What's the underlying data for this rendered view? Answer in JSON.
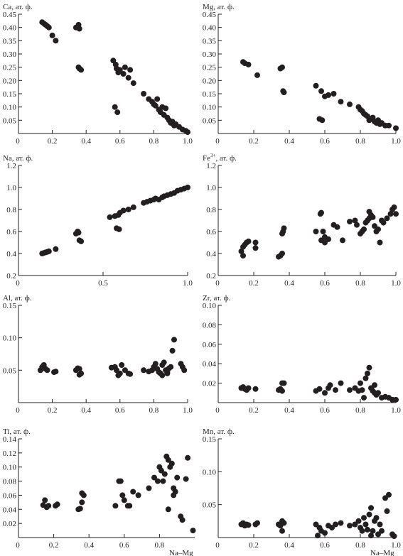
{
  "colors": {
    "axis": "#231f20",
    "marker": "#231f20",
    "background": "#ffffff"
  },
  "chart_data": [
    {
      "id": "ca",
      "type": "scatter",
      "title": "",
      "ylabel": "Ca, ат. ф.",
      "xlabel": "",
      "xlim": [
        0,
        1.0
      ],
      "ylim": [
        0,
        0.45
      ],
      "xticks": [
        "0.2",
        "0.4",
        "0.6",
        "0.8",
        "1.0"
      ],
      "yticks": [
        "0.05",
        "0.10",
        "0.15",
        "0.20",
        "0.25",
        "0.30",
        "0.35",
        "0.40",
        "0.45"
      ],
      "x": [
        0.14,
        0.15,
        0.16,
        0.17,
        0.18,
        0.2,
        0.22,
        0.34,
        0.355,
        0.36,
        0.355,
        0.36,
        0.37,
        0.56,
        0.575,
        0.58,
        0.59,
        0.6,
        0.62,
        0.63,
        0.65,
        0.66,
        0.68,
        0.57,
        0.585,
        0.74,
        0.77,
        0.79,
        0.8,
        0.81,
        0.82,
        0.83,
        0.84,
        0.85,
        0.86,
        0.87,
        0.88,
        0.89,
        0.9,
        0.91,
        0.92,
        0.93,
        0.95,
        0.97,
        0.99,
        1.0
      ],
      "y": [
        0.42,
        0.415,
        0.41,
        0.405,
        0.4,
        0.37,
        0.35,
        0.4,
        0.41,
        0.395,
        0.25,
        0.245,
        0.24,
        0.275,
        0.26,
        0.245,
        0.23,
        0.24,
        0.225,
        0.25,
        0.21,
        0.24,
        0.19,
        0.1,
        0.08,
        0.15,
        0.13,
        0.12,
        0.11,
        0.105,
        0.13,
        0.09,
        0.08,
        0.1,
        0.07,
        0.095,
        0.06,
        0.05,
        0.04,
        0.045,
        0.03,
        0.035,
        0.025,
        0.015,
        0.01,
        0.005
      ]
    },
    {
      "id": "mg",
      "type": "scatter",
      "title": "",
      "ylabel": "Mg, ат. ф.",
      "xlabel": "",
      "xlim": [
        0,
        1.0
      ],
      "ylim": [
        0,
        0.45
      ],
      "xticks": [
        "0.2",
        "0.4",
        "0.6",
        "0.8",
        "1.0"
      ],
      "yticks": [
        "0.05",
        "0.10",
        "0.15",
        "0.20",
        "0.25",
        "0.30",
        "0.35",
        "0.40",
        "0.45"
      ],
      "x": [
        0.14,
        0.15,
        0.17,
        0.22,
        0.35,
        0.36,
        0.365,
        0.37,
        0.55,
        0.58,
        0.6,
        0.62,
        0.65,
        0.57,
        0.585,
        0.69,
        0.74,
        0.79,
        0.8,
        0.81,
        0.82,
        0.83,
        0.84,
        0.85,
        0.86,
        0.87,
        0.88,
        0.89,
        0.9,
        0.91,
        0.92,
        0.94,
        0.96,
        1.0
      ],
      "y": [
        0.27,
        0.265,
        0.26,
        0.22,
        0.245,
        0.25,
        0.16,
        0.155,
        0.18,
        0.16,
        0.14,
        0.145,
        0.15,
        0.055,
        0.05,
        0.12,
        0.11,
        0.1,
        0.09,
        0.085,
        0.075,
        0.07,
        0.065,
        0.05,
        0.055,
        0.06,
        0.045,
        0.04,
        0.05,
        0.035,
        0.04,
        0.03,
        0.03,
        0.02
      ]
    },
    {
      "id": "na",
      "type": "scatter",
      "title": "",
      "ylabel": "Na, ат. ф.",
      "xlabel": "",
      "xlim": [
        0,
        1.0
      ],
      "ylim": [
        0.2,
        1.2
      ],
      "xticks": [
        "0.5",
        "1.0"
      ],
      "yticks": [
        "0.2",
        "0.4",
        "0.6",
        "0.8",
        "1.0",
        "1.2"
      ],
      "x": [
        0.14,
        0.15,
        0.16,
        0.17,
        0.18,
        0.22,
        0.34,
        0.35,
        0.355,
        0.36,
        0.37,
        0.54,
        0.57,
        0.59,
        0.6,
        0.62,
        0.65,
        0.68,
        0.58,
        0.595,
        0.74,
        0.76,
        0.78,
        0.8,
        0.81,
        0.83,
        0.85,
        0.86,
        0.88,
        0.9,
        0.92,
        0.94,
        0.96,
        0.98,
        1.0
      ],
      "y": [
        0.4,
        0.405,
        0.41,
        0.415,
        0.42,
        0.44,
        0.58,
        0.6,
        0.59,
        0.52,
        0.51,
        0.73,
        0.74,
        0.75,
        0.77,
        0.79,
        0.8,
        0.82,
        0.63,
        0.62,
        0.86,
        0.87,
        0.88,
        0.89,
        0.9,
        0.89,
        0.91,
        0.92,
        0.93,
        0.94,
        0.95,
        0.97,
        0.98,
        0.99,
        1.0
      ]
    },
    {
      "id": "fe3",
      "type": "scatter",
      "title": "",
      "ylabel": "Fe3+, ат. ф.",
      "xlabel": "",
      "xlim": [
        0,
        1.0
      ],
      "ylim": [
        0.2,
        1.2
      ],
      "xticks": [
        "0.2",
        "0.4",
        "0.6",
        "0.8",
        "1.0"
      ],
      "yticks": [
        "0.2",
        "0.4",
        "0.6",
        "0.8",
        "1.0",
        "1.2"
      ],
      "x": [
        0.13,
        0.14,
        0.15,
        0.16,
        0.17,
        0.14,
        0.21,
        0.21,
        0.34,
        0.35,
        0.36,
        0.365,
        0.37,
        0.36,
        0.55,
        0.575,
        0.58,
        0.59,
        0.6,
        0.58,
        0.6,
        0.62,
        0.65,
        0.67,
        0.7,
        0.74,
        0.77,
        0.78,
        0.8,
        0.81,
        0.82,
        0.83,
        0.84,
        0.85,
        0.86,
        0.87,
        0.88,
        0.89,
        0.9,
        0.91,
        0.85,
        0.92,
        0.95,
        0.97,
        0.99,
        0.98,
        1.0,
        0.93
      ],
      "y": [
        0.42,
        0.46,
        0.48,
        0.5,
        0.51,
        0.38,
        0.45,
        0.5,
        0.37,
        0.38,
        0.4,
        0.6,
        0.63,
        0.58,
        0.6,
        0.76,
        0.77,
        0.6,
        0.55,
        0.52,
        0.5,
        0.53,
        0.66,
        0.64,
        0.52,
        0.69,
        0.7,
        0.66,
        0.58,
        0.6,
        0.62,
        0.68,
        0.7,
        0.72,
        0.75,
        0.73,
        0.65,
        0.6,
        0.62,
        0.5,
        0.78,
        0.7,
        0.72,
        0.76,
        0.82,
        0.8,
        0.76,
        0.68
      ]
    },
    {
      "id": "al",
      "type": "scatter",
      "title": "",
      "ylabel": "Al, ат. ф.",
      "xlabel": "",
      "xlim": [
        0,
        1.0
      ],
      "ylim": [
        0,
        0.15
      ],
      "xticks": [
        "0.2",
        "0.4",
        "0.6",
        "0.8",
        "1.0"
      ],
      "yticks": [
        "0.05",
        "0.10",
        "0.15"
      ],
      "x": [
        0.13,
        0.14,
        0.15,
        0.16,
        0.17,
        0.21,
        0.22,
        0.34,
        0.35,
        0.36,
        0.37,
        0.36,
        0.55,
        0.57,
        0.58,
        0.6,
        0.61,
        0.63,
        0.65,
        0.59,
        0.66,
        0.74,
        0.77,
        0.79,
        0.8,
        0.81,
        0.82,
        0.83,
        0.84,
        0.85,
        0.86,
        0.87,
        0.88,
        0.89,
        0.9,
        0.91,
        0.92,
        0.85,
        0.96,
        0.97,
        0.98,
        0.88
      ],
      "y": [
        0.05,
        0.055,
        0.058,
        0.052,
        0.05,
        0.047,
        0.048,
        0.05,
        0.053,
        0.052,
        0.045,
        0.043,
        0.054,
        0.055,
        0.05,
        0.045,
        0.058,
        0.05,
        0.045,
        0.042,
        0.044,
        0.05,
        0.048,
        0.05,
        0.055,
        0.06,
        0.052,
        0.047,
        0.045,
        0.058,
        0.062,
        0.05,
        0.048,
        0.053,
        0.055,
        0.08,
        0.097,
        0.042,
        0.06,
        0.055,
        0.05,
        0.045
      ]
    },
    {
      "id": "zr",
      "type": "scatter",
      "title": "",
      "ylabel": "Zr, ат. ф.",
      "xlabel": "",
      "xlim": [
        0,
        1.0
      ],
      "ylim": [
        0,
        0.1
      ],
      "xticks": [
        "0.2",
        "0.4",
        "0.6",
        "0.8",
        "1.0"
      ],
      "yticks": [
        "0.02",
        "0.04",
        "0.06",
        "0.08",
        "0.10"
      ],
      "x": [
        0.13,
        0.14,
        0.15,
        0.16,
        0.17,
        0.21,
        0.34,
        0.35,
        0.36,
        0.37,
        0.36,
        0.55,
        0.57,
        0.6,
        0.62,
        0.63,
        0.66,
        0.69,
        0.74,
        0.77,
        0.79,
        0.8,
        0.81,
        0.82,
        0.84,
        0.85,
        0.86,
        0.87,
        0.88,
        0.89,
        0.9,
        0.92,
        0.94,
        0.96,
        0.98,
        1.0,
        0.83,
        0.88
      ],
      "y": [
        0.015,
        0.016,
        0.014,
        0.013,
        0.015,
        0.014,
        0.013,
        0.014,
        0.02,
        0.02,
        0.012,
        0.012,
        0.014,
        0.01,
        0.015,
        0.018,
        0.013,
        0.02,
        0.013,
        0.015,
        0.012,
        0.02,
        0.013,
        0.005,
        0.03,
        0.036,
        0.015,
        0.012,
        0.01,
        0.008,
        0.01,
        0.005,
        0.006,
        0.005,
        0.003,
        0.003,
        0.025,
        0.018
      ]
    },
    {
      "id": "ti",
      "type": "scatter",
      "title": "",
      "ylabel": "Ti, ат. ф.",
      "xlabel": "Na–Mg",
      "xlim": [
        0,
        1.0
      ],
      "ylim": [
        0,
        0.14
      ],
      "xticks": [
        "0.2",
        "0.4",
        "0.6",
        "0.8"
      ],
      "yticks": [
        "0.02",
        "0.04",
        "0.06",
        "0.08",
        "0.10",
        "0.12",
        "0.14"
      ],
      "x": [
        0.14,
        0.15,
        0.16,
        0.17,
        0.21,
        0.22,
        0.34,
        0.35,
        0.36,
        0.37,
        0.36,
        0.55,
        0.57,
        0.58,
        0.59,
        0.6,
        0.62,
        0.63,
        0.65,
        0.68,
        0.74,
        0.77,
        0.79,
        0.8,
        0.81,
        0.82,
        0.83,
        0.84,
        0.85,
        0.86,
        0.87,
        0.88,
        0.89,
        0.9,
        0.92,
        0.95,
        0.99,
        0.85,
        0.88,
        0.93,
        0.96
      ],
      "y": [
        0.046,
        0.053,
        0.043,
        0.045,
        0.045,
        0.047,
        0.04,
        0.041,
        0.05,
        0.06,
        0.063,
        0.045,
        0.08,
        0.08,
        0.06,
        0.053,
        0.045,
        0.045,
        0.065,
        0.06,
        0.07,
        0.085,
        0.08,
        0.1,
        0.095,
        0.08,
        0.09,
        0.115,
        0.11,
        0.1,
        0.105,
        0.07,
        0.065,
        0.085,
        0.03,
        0.083,
        0.01,
        0.04,
        0.06,
        0.025,
        0.113
      ]
    },
    {
      "id": "mn",
      "type": "scatter",
      "title": "",
      "ylabel": "Mn, ат. ф.",
      "xlabel": "Na–Mg",
      "xlim": [
        0,
        1.0
      ],
      "ylim": [
        0,
        0.15
      ],
      "xticks": [
        "0.2",
        "0.4",
        "0.6",
        "0.8",
        "1.0"
      ],
      "yticks": [
        "0.05",
        "0.10",
        "0.15"
      ],
      "x": [
        0.13,
        0.14,
        0.15,
        0.16,
        0.17,
        0.21,
        0.22,
        0.34,
        0.35,
        0.36,
        0.37,
        0.36,
        0.55,
        0.57,
        0.58,
        0.6,
        0.62,
        0.64,
        0.66,
        0.69,
        0.56,
        0.74,
        0.77,
        0.79,
        0.8,
        0.81,
        0.82,
        0.83,
        0.84,
        0.85,
        0.86,
        0.87,
        0.88,
        0.89,
        0.9,
        0.91,
        0.92,
        0.95,
        0.96,
        0.98,
        0.99,
        0.94,
        0.86
      ],
      "y": [
        0.02,
        0.022,
        0.018,
        0.02,
        0.019,
        0.02,
        0.022,
        0.02,
        0.018,
        0.025,
        0.022,
        0.01,
        0.02,
        0.015,
        0.01,
        0.007,
        0.018,
        0.015,
        0.02,
        0.022,
        0.003,
        0.018,
        0.02,
        0.025,
        0.015,
        0.01,
        0.03,
        0.02,
        0.012,
        0.035,
        0.045,
        0.01,
        0.025,
        0.03,
        0.005,
        0.02,
        0.01,
        0.04,
        0.065,
        0.005,
        0.002,
        0.06,
        0.003
      ]
    }
  ]
}
